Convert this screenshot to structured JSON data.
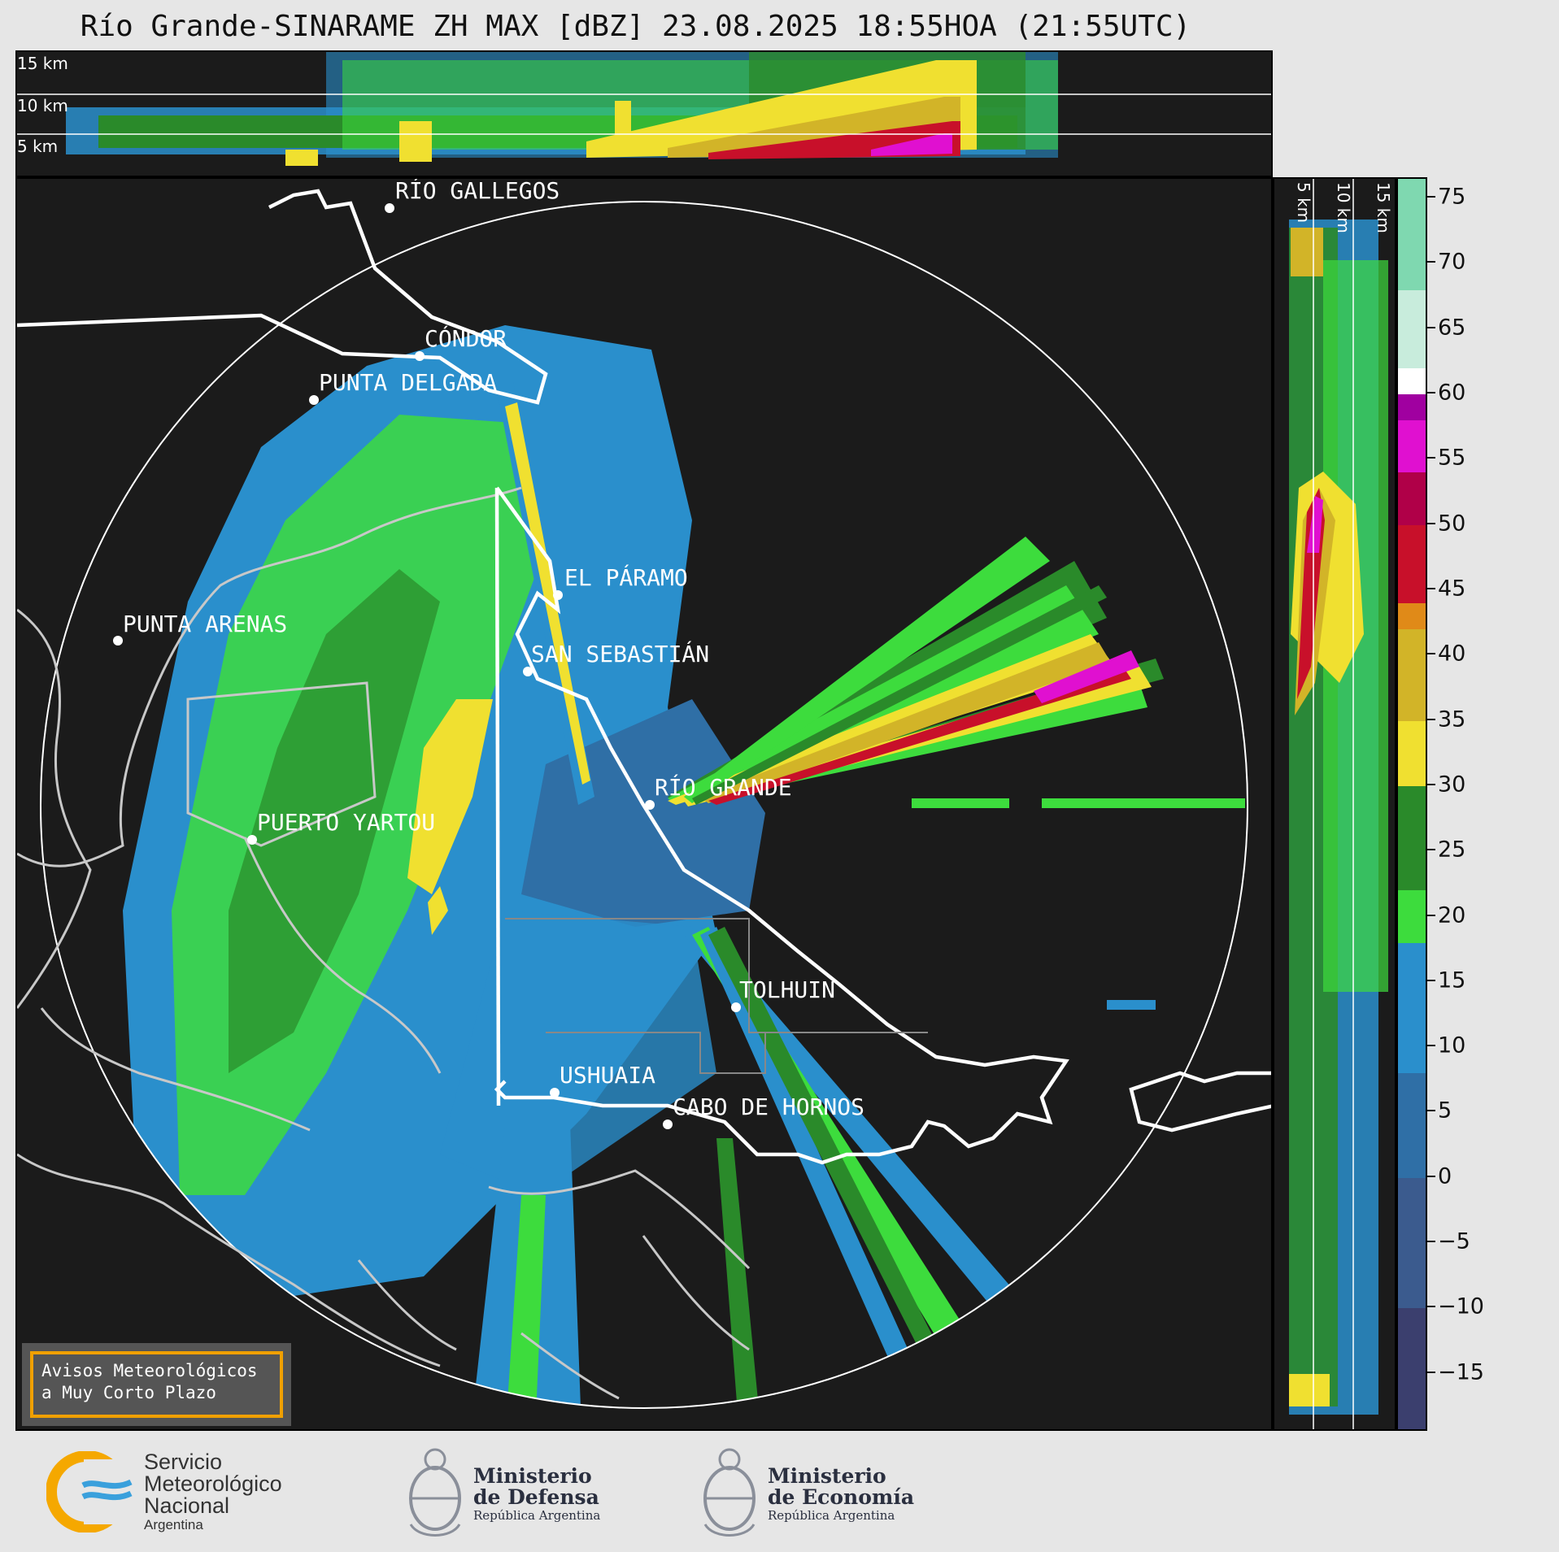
{
  "title": "Río Grande-SINARAME ZH MAX [dBZ] 23.08.2025 18:55HOA (21:55UTC)",
  "top_panel": {
    "height_labels": [
      "15 km",
      "10 km",
      "5 km"
    ]
  },
  "side_panel": {
    "height_labels": [
      "5 km",
      "10 km",
      "15 km"
    ]
  },
  "colorbar": {
    "unit": "dBZ",
    "ticks": [
      75,
      70,
      65,
      60,
      55,
      50,
      45,
      40,
      35,
      30,
      25,
      20,
      15,
      10,
      5,
      0,
      -5,
      -10,
      -15
    ],
    "tick_labels": [
      "75",
      "70",
      "65",
      "60",
      "55",
      "50",
      "45",
      "40",
      "35",
      "30",
      "25",
      "20",
      "15",
      "10",
      "5",
      "0",
      "−5",
      "−10",
      "−15"
    ],
    "range": [
      -19.5,
      76.5
    ],
    "bands": [
      {
        "from": -19.5,
        "to": -10,
        "color": "#3b3f6e"
      },
      {
        "from": -10,
        "to": 0,
        "color": "#3b5b8e"
      },
      {
        "from": 0,
        "to": 8,
        "color": "#2f6fa6"
      },
      {
        "from": 8,
        "to": 18,
        "color": "#2a8fcc"
      },
      {
        "from": 18,
        "to": 22,
        "color": "#3ddc3d"
      },
      {
        "from": 22,
        "to": 30,
        "color": "#2a8a2a"
      },
      {
        "from": 30,
        "to": 35,
        "color": "#f0e030"
      },
      {
        "from": 35,
        "to": 42,
        "color": "#d2b428"
      },
      {
        "from": 42,
        "to": 44,
        "color": "#e08a18"
      },
      {
        "from": 44,
        "to": 50,
        "color": "#c8102a"
      },
      {
        "from": 50,
        "to": 54,
        "color": "#b00048"
      },
      {
        "from": 54,
        "to": 58,
        "color": "#e010d0"
      },
      {
        "from": 58,
        "to": 60,
        "color": "#a000a0"
      },
      {
        "from": 60,
        "to": 62,
        "color": "#ffffff"
      },
      {
        "from": 62,
        "to": 68,
        "color": "#c8ecdc"
      },
      {
        "from": 68,
        "to": 76.5,
        "color": "#7fd8b0"
      }
    ]
  },
  "cities": [
    {
      "name": "RÍO GALLEGOS"
    },
    {
      "name": "CÓNDOR"
    },
    {
      "name": "PUNTA DELGADA"
    },
    {
      "name": "EL PÁRAMO"
    },
    {
      "name": "PUNTA ARENAS"
    },
    {
      "name": "SAN SEBASTIÁN"
    },
    {
      "name": "RÍO GRANDE"
    },
    {
      "name": "PUERTO YARTOU"
    },
    {
      "name": "TOLHUIN"
    },
    {
      "name": "USHUAIA"
    },
    {
      "name": "CABO DE HORNOS"
    }
  ],
  "warning": {
    "line1": "Avisos Meteorológicos",
    "line2": "a Muy Corto Plazo"
  },
  "logos": {
    "smn": {
      "line1": "Servicio",
      "line2": "Meteorológico",
      "line3": "Nacional",
      "line4": "Argentina"
    },
    "defensa": {
      "line1": "Ministerio",
      "line2": "de Defensa",
      "line3": "República Argentina"
    },
    "economia": {
      "line1": "Ministerio",
      "line2": "de Economía",
      "line3": "República Argentina"
    }
  }
}
